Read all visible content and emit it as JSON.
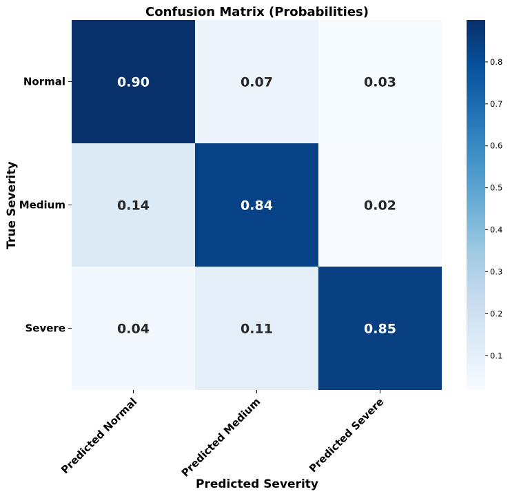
{
  "chart_data": {
    "type": "heatmap",
    "title": "Confusion Matrix (Probabilities)",
    "xlabel": "Predicted Severity",
    "ylabel": "True Severity",
    "x_categories": [
      "Predicted Normal",
      "Predicted Medium",
      "Predicted Severe"
    ],
    "y_categories": [
      "Normal",
      "Medium",
      "Severe"
    ],
    "values": [
      [
        0.9,
        0.07,
        0.03
      ],
      [
        0.14,
        0.84,
        0.02
      ],
      [
        0.04,
        0.11,
        0.85
      ]
    ],
    "cell_labels": [
      [
        "0.90",
        "0.07",
        "0.03"
      ],
      [
        "0.14",
        "0.84",
        "0.02"
      ],
      [
        "0.04",
        "0.11",
        "0.85"
      ]
    ],
    "colormap": "Blues",
    "colorbar": {
      "min": 0.02,
      "max": 0.9,
      "ticks": [
        0.1,
        0.2,
        0.3,
        0.4,
        0.5,
        0.6,
        0.7,
        0.8
      ],
      "tick_labels": [
        "0.1",
        "0.2",
        "0.3",
        "0.4",
        "0.5",
        "0.6",
        "0.7",
        "0.8"
      ]
    }
  }
}
